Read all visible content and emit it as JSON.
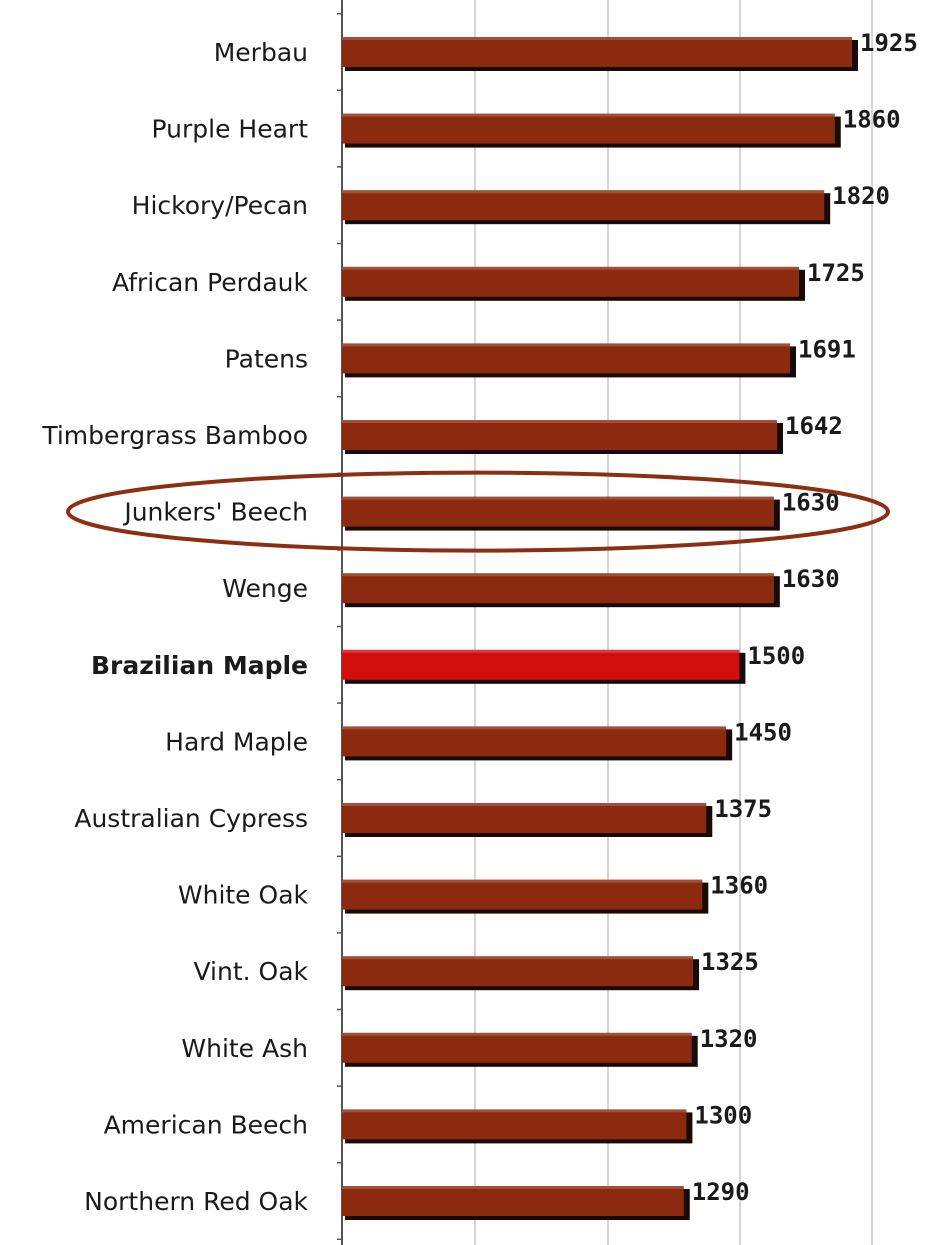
{
  "chart_data": {
    "type": "bar",
    "orientation": "horizontal",
    "categories": [
      "Merbau",
      "Purple Heart",
      "Hickory/Pecan",
      "African Perdauk",
      "Patens",
      "Timbergrass Bamboo",
      "Junkers' Beech",
      "Wenge",
      "Brazilian Maple",
      "Hard Maple",
      "Australian Cypress",
      "White Oak",
      "Vint. Oak",
      "White Ash",
      "American Beech",
      "Northern Red Oak"
    ],
    "values": [
      1925,
      1860,
      1820,
      1725,
      1691,
      1642,
      1630,
      1630,
      1500,
      1450,
      1375,
      1360,
      1325,
      1320,
      1300,
      1290
    ],
    "value_labels": [
      "1925",
      "1860",
      "1820",
      "1725",
      "1691",
      "1642",
      "1630",
      "1630",
      "1500",
      "1450",
      "1375",
      "1360",
      "1325",
      "1320",
      "1300",
      "1290"
    ],
    "highlighted_category": "Brazilian Maple",
    "circled_category": "Junkers' Beech",
    "grid": "vertical",
    "colors": {
      "bar": "#8b2a0e",
      "bar_shadow": "#1a0a05",
      "highlight_bar": "#d40d0d",
      "circle": "#8b2e12",
      "gridline": "#c8c8c8",
      "axis": "#555555"
    }
  }
}
